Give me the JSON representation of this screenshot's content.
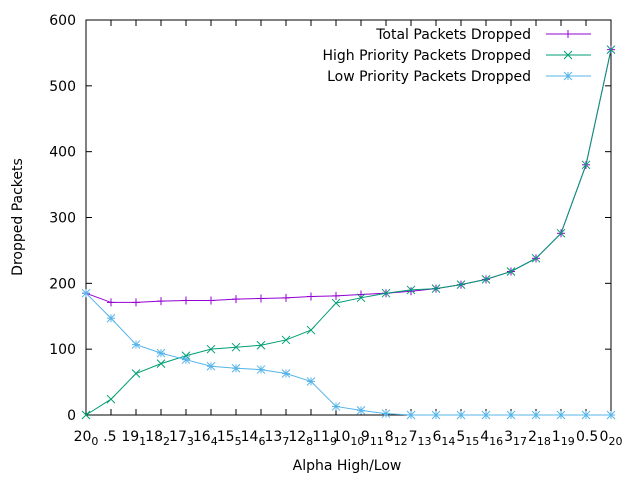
{
  "chart_data": {
    "type": "line",
    "xlabel": "Alpha High/Low",
    "ylabel": "Dropped Packets",
    "ylim": [
      0,
      600
    ],
    "yticks": [
      0,
      100,
      200,
      300,
      400,
      500,
      600
    ],
    "grid": false,
    "legend_position": "top-right",
    "tick_labels_x": [
      {
        "text": "20",
        "sub": "0"
      },
      {
        "text": ".5",
        "sub": ""
      },
      {
        "text": "19",
        "sub": "1"
      },
      {
        "text": "18",
        "sub": "2"
      },
      {
        "text": "17",
        "sub": "3"
      },
      {
        "text": "16",
        "sub": "4"
      },
      {
        "text": "15",
        "sub": "5"
      },
      {
        "text": "14",
        "sub": "6"
      },
      {
        "text": "13",
        "sub": "7"
      },
      {
        "text": "12",
        "sub": "8"
      },
      {
        "text": "11",
        "sub": "9"
      },
      {
        "text": "10",
        "sub": "10"
      },
      {
        "text": "9",
        "sub": "11"
      },
      {
        "text": "8",
        "sub": "12"
      },
      {
        "text": "7",
        "sub": "13"
      },
      {
        "text": "6",
        "sub": "14"
      },
      {
        "text": "5",
        "sub": "15"
      },
      {
        "text": "4",
        "sub": "16"
      },
      {
        "text": "3",
        "sub": "17"
      },
      {
        "text": "2",
        "sub": "18"
      },
      {
        "text": "1",
        "sub": "19"
      },
      {
        "text": "0.5",
        "sub": ""
      },
      {
        "text": "0",
        "sub": "20"
      }
    ],
    "series": [
      {
        "name": "Total Packets Dropped",
        "color": "#9400d3",
        "marker": "plus",
        "values": [
          185,
          171,
          171,
          173,
          174,
          174,
          176,
          177,
          178,
          180,
          181,
          183,
          185,
          188,
          192,
          198,
          206,
          218,
          238,
          276,
          380,
          555
        ]
      },
      {
        "name": "High Priority Packets Dropped",
        "color": "#009e73",
        "marker": "x",
        "values": [
          0,
          24,
          63,
          78,
          90,
          100,
          103,
          106,
          114,
          129,
          170,
          178,
          185,
          190,
          192,
          198,
          206,
          218,
          238,
          276,
          380,
          555
        ]
      },
      {
        "name": "Low Priority Packets Dropped",
        "color": "#56b4e9",
        "marker": "star",
        "values": [
          185,
          147,
          107,
          94,
          84,
          74,
          71,
          69,
          63,
          51,
          13,
          7,
          2,
          0,
          0,
          0,
          0,
          0,
          0,
          0,
          0,
          0
        ]
      }
    ]
  }
}
